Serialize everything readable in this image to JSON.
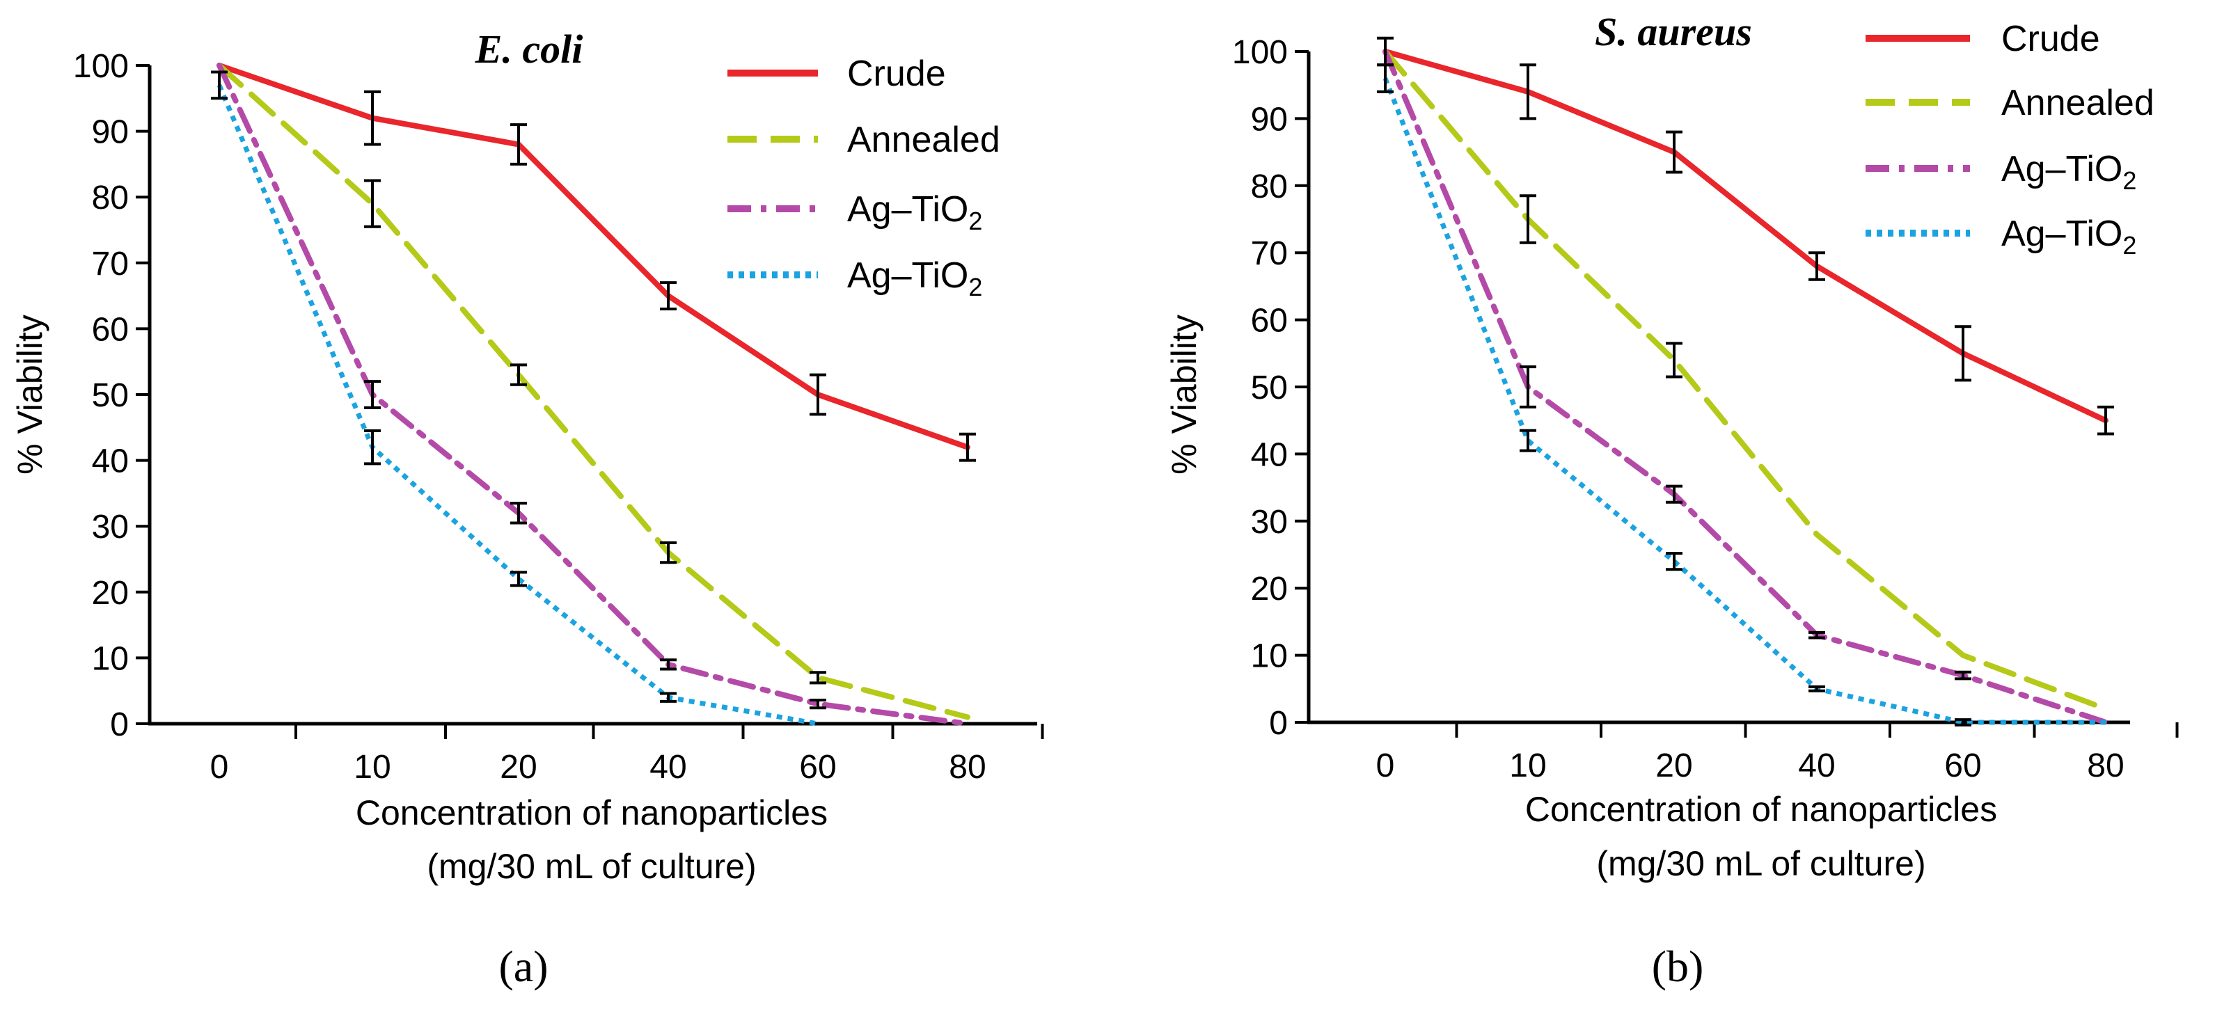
{
  "figure": {
    "panels": [
      "(a)",
      "(b)"
    ]
  },
  "chart_data": [
    {
      "type": "line",
      "panel_label": "(a)",
      "title": "E. coli",
      "xlabel": "Concentration of nanoparticles",
      "xlabel_line2": "(mg/30 mL of culture)",
      "ylabel": "% Viability",
      "categories": [
        "0",
        "10",
        "20",
        "40",
        "60",
        "80"
      ],
      "ylim": [
        0,
        100
      ],
      "yticks": [
        "0",
        "10",
        "20",
        "30",
        "40",
        "50",
        "60",
        "70",
        "80",
        "90",
        "100"
      ],
      "legend_position": "top-right",
      "series": [
        {
          "name": "Crude",
          "sub": "",
          "color": "#e8262b",
          "style": "solid",
          "values": [
            100,
            92,
            88,
            65,
            50,
            42
          ],
          "errors": [
            null,
            4,
            3,
            2,
            3,
            2
          ]
        },
        {
          "name": "Annealed",
          "sub": "",
          "color": "#b5c918",
          "style": "dashed",
          "values": [
            100,
            79,
            53,
            26,
            7,
            1
          ],
          "errors": [
            null,
            3.5,
            1.5,
            1.5,
            0.8,
            null
          ]
        },
        {
          "name": "Ag–TiO",
          "sub": "2",
          "color": "#b44aa8",
          "style": "dashdot",
          "values": [
            100,
            50,
            32,
            9,
            3,
            0
          ],
          "errors": [
            null,
            2,
            1.5,
            0.7,
            0.6,
            null
          ]
        },
        {
          "name": "Ag–TiO",
          "sub": "2",
          "color": "#1aa3e0",
          "style": "dotted",
          "values": [
            97,
            42,
            22,
            4,
            0,
            null
          ],
          "errors": [
            2,
            2.5,
            1,
            0.6,
            null,
            null
          ]
        }
      ]
    },
    {
      "type": "line",
      "panel_label": "(b)",
      "title": "S. aureus",
      "xlabel": "Concentration of nanoparticles",
      "xlabel_line2": "(mg/30 mL of culture)",
      "ylabel": "% Viability",
      "categories": [
        "0",
        "10",
        "20",
        "40",
        "60",
        "80"
      ],
      "ylim": [
        0,
        100
      ],
      "yticks": [
        "0",
        "10",
        "20",
        "30",
        "40",
        "50",
        "60",
        "70",
        "80",
        "90",
        "100"
      ],
      "legend_position": "top-right",
      "series": [
        {
          "name": "Crude",
          "sub": "",
          "color": "#e8262b",
          "style": "solid",
          "values": [
            100,
            94,
            85,
            68,
            55,
            45
          ],
          "errors": [
            2,
            4,
            3,
            2,
            4,
            2
          ]
        },
        {
          "name": "Annealed",
          "sub": "",
          "color": "#b5c918",
          "style": "dashed",
          "values": [
            100,
            75,
            54,
            28,
            10,
            2
          ],
          "errors": [
            null,
            3.5,
            2.5,
            null,
            null,
            null
          ]
        },
        {
          "name": "Ag–TiO",
          "sub": "2",
          "color": "#b44aa8",
          "style": "dashdot",
          "values": [
            100,
            50,
            34,
            13,
            7,
            0
          ],
          "errors": [
            null,
            3,
            1.2,
            0.4,
            0.5,
            null
          ]
        },
        {
          "name": "Ag–TiO",
          "sub": "2",
          "color": "#1aa3e0",
          "style": "dotted",
          "values": [
            96,
            42,
            24,
            5,
            0,
            0
          ],
          "errors": [
            2,
            1.5,
            1.2,
            0.3,
            0.4,
            null
          ]
        }
      ]
    }
  ]
}
